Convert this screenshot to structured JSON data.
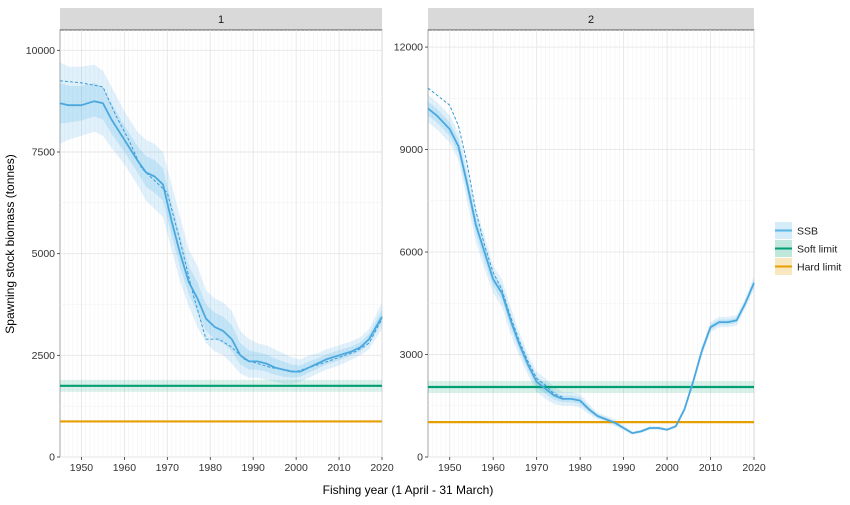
{
  "ylabel": "Spawning stock biomass (tonnes)",
  "xlabel": "Fishing year (1 April - 31 March)",
  "legend": {
    "placement": "right",
    "items": [
      {
        "label": "SSB",
        "color": "#56b4e9"
      },
      {
        "label": "Soft limit",
        "color": "#009e73"
      },
      {
        "label": "Hard limit",
        "color": "#e69f00"
      }
    ]
  },
  "chart_data": [
    {
      "type": "line",
      "panel_title": "1",
      "xlim": [
        1945,
        2020
      ],
      "ylim": [
        0,
        10500
      ],
      "x_ticks": [
        1950,
        1960,
        1970,
        1980,
        1990,
        2000,
        2010,
        2020
      ],
      "y_ticks": [
        0,
        2500,
        5000,
        7500,
        10000
      ],
      "grid": true,
      "series": [
        {
          "name": "SSB",
          "x": [
            1945,
            1947,
            1950,
            1953,
            1955,
            1957,
            1960,
            1963,
            1965,
            1967,
            1969,
            1971,
            1973,
            1975,
            1977,
            1979,
            1981,
            1983,
            1985,
            1987,
            1989,
            1991,
            1993,
            1995,
            1997,
            1999,
            2001,
            2003,
            2005,
            2007,
            2010,
            2013,
            2015,
            2017,
            2020
          ],
          "y": [
            8700,
            8650,
            8650,
            8750,
            8700,
            8300,
            7800,
            7300,
            7000,
            6900,
            6700,
            5800,
            5000,
            4300,
            3900,
            3400,
            3200,
            3100,
            2900,
            2500,
            2350,
            2350,
            2300,
            2200,
            2150,
            2100,
            2100,
            2200,
            2300,
            2400,
            2500,
            2600,
            2700,
            2900,
            3450
          ],
          "lower": [
            7700,
            7800,
            7900,
            8000,
            7900,
            7600,
            7200,
            6700,
            6300,
            6100,
            5900,
            5100,
            4300,
            3700,
            3200,
            2800,
            2600,
            2500,
            2300,
            2050,
            1950,
            1950,
            1900,
            1850,
            1800,
            1800,
            1850,
            1950,
            2050,
            2150,
            2250,
            2400,
            2500,
            2650,
            3150
          ],
          "upper": [
            9700,
            9600,
            9600,
            9650,
            9500,
            9100,
            8500,
            8000,
            7800,
            7700,
            7500,
            6700,
            5900,
            5100,
            4700,
            4100,
            3900,
            3800,
            3600,
            3100,
            2900,
            2800,
            2750,
            2650,
            2550,
            2450,
            2400,
            2500,
            2550,
            2650,
            2750,
            2850,
            2950,
            3150,
            3800
          ]
        },
        {
          "name": "SSB",
          "x": [
            1945,
            1950,
            1955,
            1958,
            1961,
            1964,
            1967,
            1970,
            1973,
            1976,
            1979,
            1982,
            1985,
            1988,
            1991,
            1994,
            1997,
            2000,
            2003,
            2006,
            2010,
            2014,
            2017,
            2020
          ],
          "y": [
            9250,
            9200,
            9100,
            8400,
            7800,
            7100,
            6800,
            6500,
            5300,
            4000,
            2900,
            2900,
            2700,
            2400,
            2300,
            2200,
            2150,
            2100,
            2200,
            2300,
            2450,
            2600,
            2800,
            3400
          ]
        },
        {
          "name": "Soft limit",
          "y": 1750
        },
        {
          "name": "Hard limit",
          "y": 875
        }
      ]
    },
    {
      "type": "line",
      "panel_title": "2",
      "xlim": [
        1945,
        2020
      ],
      "ylim": [
        0,
        12500
      ],
      "x_ticks": [
        1950,
        1960,
        1970,
        1980,
        1990,
        2000,
        2010,
        2020
      ],
      "y_ticks": [
        0,
        3000,
        6000,
        9000,
        12000
      ],
      "grid": true,
      "series": [
        {
          "name": "SSB",
          "x": [
            1945,
            1947,
            1950,
            1952,
            1954,
            1956,
            1958,
            1960,
            1962,
            1964,
            1966,
            1968,
            1970,
            1972,
            1974,
            1976,
            1978,
            1980,
            1982,
            1984,
            1986,
            1988,
            1990,
            1992,
            1994,
            1996,
            1998,
            2000,
            2002,
            2004,
            2006,
            2008,
            2010,
            2012,
            2014,
            2016,
            2018,
            2020
          ],
          "y": [
            10200,
            10000,
            9600,
            9100,
            8000,
            6800,
            6000,
            5200,
            4800,
            4000,
            3300,
            2700,
            2200,
            2000,
            1800,
            1700,
            1700,
            1650,
            1400,
            1200,
            1100,
            1000,
            850,
            700,
            750,
            850,
            850,
            800,
            900,
            1400,
            2200,
            3100,
            3800,
            3950,
            3950,
            4000,
            4500,
            5100
          ],
          "lower": [
            9800,
            9600,
            9200,
            8700,
            7500,
            6300,
            5500,
            4800,
            4400,
            3600,
            2950,
            2400,
            1900,
            1700,
            1550,
            1500,
            1500,
            1450,
            1250,
            1100,
            1000,
            900,
            780,
            650,
            700,
            800,
            800,
            760,
            850,
            1320,
            2100,
            2950,
            3650,
            3800,
            3800,
            3850,
            4350,
            4900
          ],
          "upper": [
            10600,
            10400,
            10000,
            9500,
            8500,
            7300,
            6500,
            5600,
            5200,
            4400,
            3650,
            3000,
            2500,
            2300,
            2050,
            1900,
            1900,
            1850,
            1550,
            1300,
            1200,
            1100,
            920,
            750,
            800,
            900,
            900,
            840,
            950,
            1480,
            2300,
            3250,
            3950,
            4100,
            4100,
            4150,
            4650,
            5300
          ]
        },
        {
          "name": "SSB",
          "x": [
            1945,
            1947,
            1950,
            1952,
            1954,
            1956,
            1958,
            1960,
            1962,
            1964,
            1966,
            1968,
            1970,
            1972,
            1974,
            1976
          ],
          "y": [
            10800,
            10600,
            10300,
            9700,
            8600,
            7200,
            6200,
            5400,
            4900,
            4100,
            3400,
            2800,
            2300,
            2100,
            1850,
            1750
          ]
        },
        {
          "name": "Soft limit",
          "y": 2050
        },
        {
          "name": "Hard limit",
          "y": 1020
        }
      ]
    }
  ]
}
